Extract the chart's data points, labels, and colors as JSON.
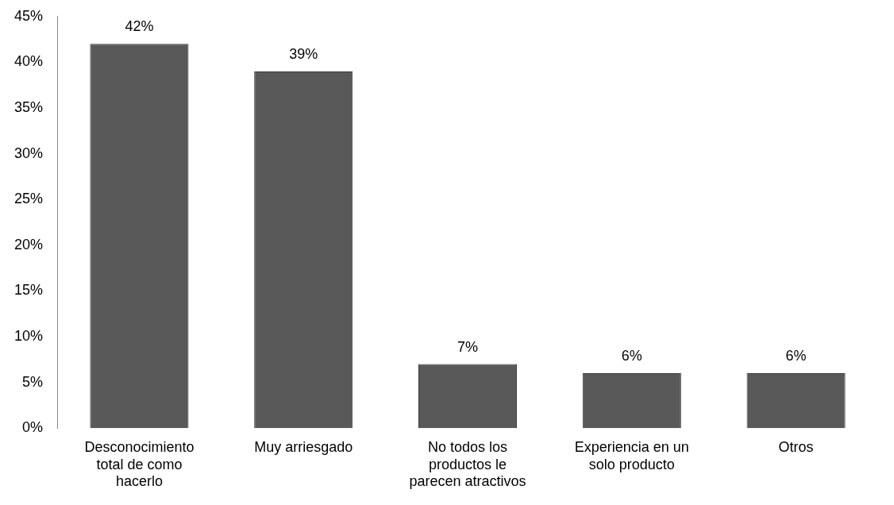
{
  "chart_data": {
    "type": "bar",
    "categories": [
      "Desconocimiento total de como hacerlo",
      "Muy arriesgado",
      "No todos los productos le parecen atractivos",
      "Experiencia en un solo producto",
      "Otros"
    ],
    "values": [
      42,
      39,
      7,
      6,
      6
    ],
    "value_labels": [
      "42%",
      "39%",
      "7%",
      "6%",
      "6%"
    ],
    "color": "#595959",
    "ylim": [
      0,
      45
    ],
    "yticks": [
      {
        "value": 0,
        "label": "0%"
      },
      {
        "value": 5,
        "label": "5%"
      },
      {
        "value": 10,
        "label": "10%"
      },
      {
        "value": 15,
        "label": "15%"
      },
      {
        "value": 20,
        "label": "20%"
      },
      {
        "value": 25,
        "label": "25%"
      },
      {
        "value": 30,
        "label": "30%"
      },
      {
        "value": 35,
        "label": "35%"
      },
      {
        "value": 40,
        "label": "40%"
      },
      {
        "value": 45,
        "label": "45%"
      }
    ],
    "grid": false,
    "legend": false
  }
}
